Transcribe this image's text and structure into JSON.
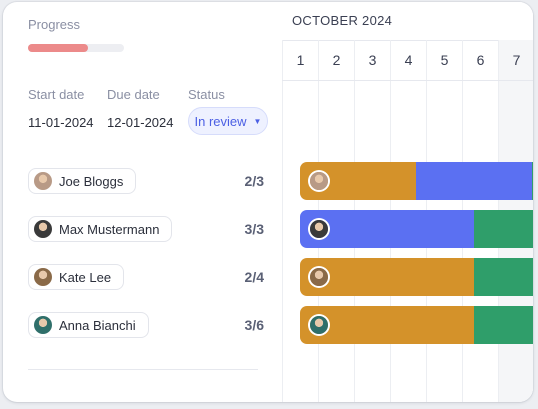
{
  "progress": {
    "label": "Progress",
    "fraction": 0.62,
    "color": "#ec8a8a"
  },
  "fields": {
    "start_label": "Start date",
    "start_value": "11-01-2024",
    "due_label": "Due date",
    "due_value": "12-01-2024",
    "status_label": "Status",
    "status_value": "In review"
  },
  "people": [
    {
      "name": "Joe Bloggs",
      "count": "2/3",
      "avatar_color": "#b89a86"
    },
    {
      "name": "Max Mustermann",
      "count": "3/3",
      "avatar_color": "#3a3a3a"
    },
    {
      "name": "Kate Lee",
      "count": "2/4",
      "avatar_color": "#8a6a48"
    },
    {
      "name": "Anna Bianchi",
      "count": "3/6",
      "avatar_color": "#2f6f6a"
    }
  ],
  "calendar": {
    "month": "OCTOBER 2024",
    "days": [
      "1",
      "2",
      "3",
      "4",
      "5",
      "6",
      "7"
    ]
  },
  "colors": {
    "orange": "#d4922a",
    "blue": "#5b70f2",
    "green": "#2f9e6a",
    "accent": "#4b5fe4"
  }
}
